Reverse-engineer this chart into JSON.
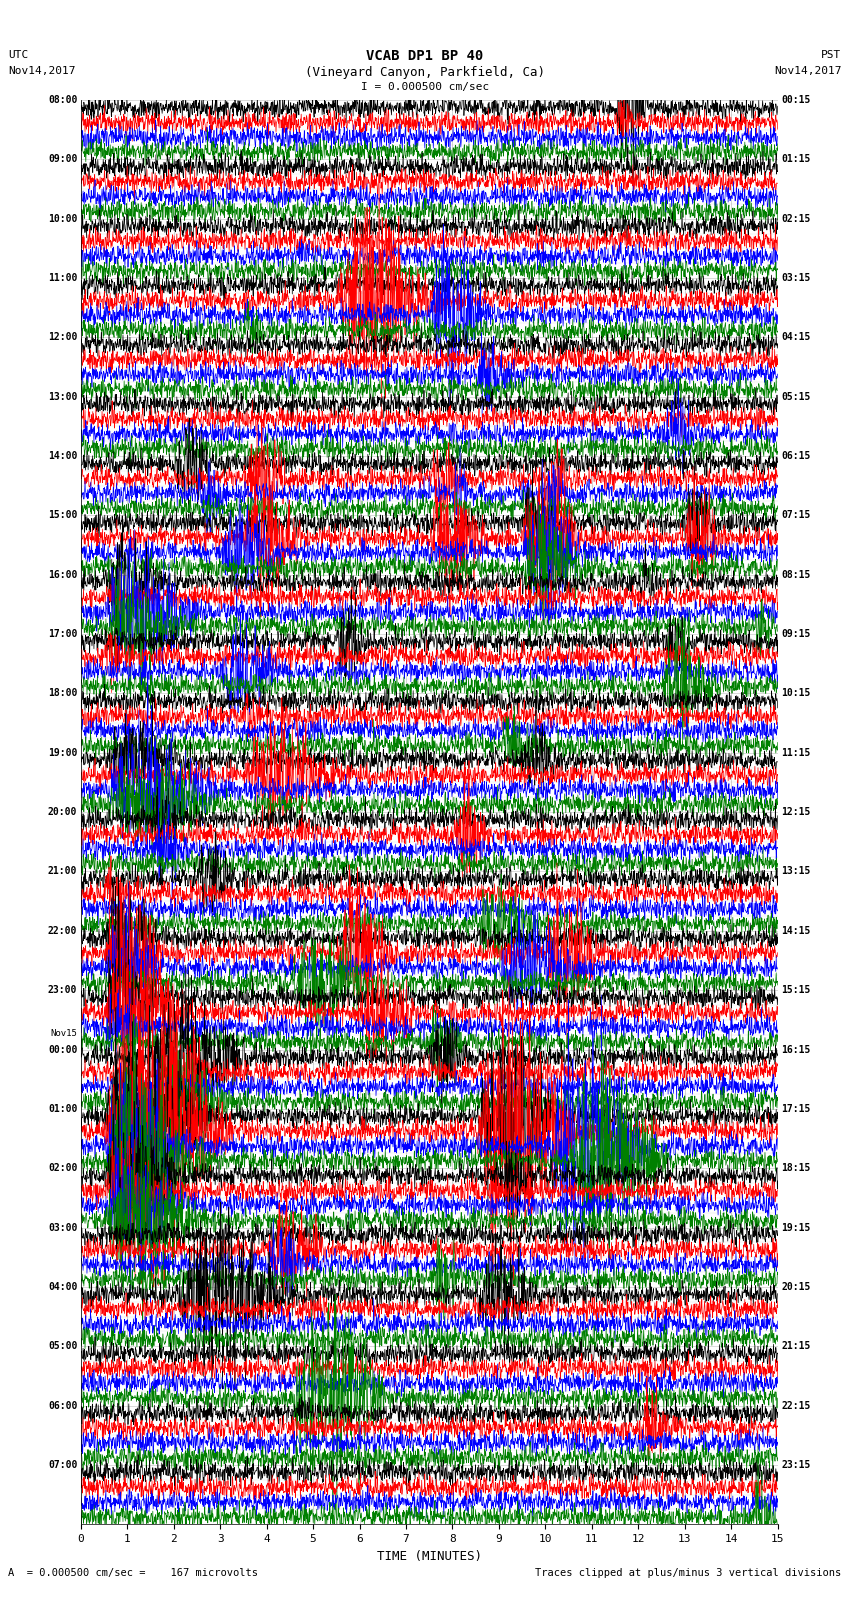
{
  "title_line1": "VCAB DP1 BP 40",
  "title_line2": "(Vineyard Canyon, Parkfield, Ca)",
  "scale_label": "I = 0.000500 cm/sec",
  "left_label_top": "UTC",
  "left_label_date": "Nov14,2017",
  "right_label_top": "PST",
  "right_label_date": "Nov14,2017",
  "xlabel": "TIME (MINUTES)",
  "bottom_left_note": "A  = 0.000500 cm/sec =    167 microvolts",
  "bottom_right_note": "Traces clipped at plus/minus 3 vertical divisions",
  "xlim": [
    0,
    15
  ],
  "xticks": [
    0,
    1,
    2,
    3,
    4,
    5,
    6,
    7,
    8,
    9,
    10,
    11,
    12,
    13,
    14,
    15
  ],
  "colors": [
    "black",
    "red",
    "blue",
    "green"
  ],
  "utc_times": [
    "08:00",
    "09:00",
    "10:00",
    "11:00",
    "12:00",
    "13:00",
    "14:00",
    "15:00",
    "16:00",
    "17:00",
    "18:00",
    "19:00",
    "20:00",
    "21:00",
    "22:00",
    "23:00",
    "Nov15",
    "00:00",
    "01:00",
    "02:00",
    "03:00",
    "04:00",
    "05:00",
    "06:00",
    "07:00"
  ],
  "pst_times": [
    "00:15",
    "01:15",
    "02:15",
    "03:15",
    "04:15",
    "05:15",
    "06:15",
    "07:15",
    "08:15",
    "09:15",
    "10:15",
    "11:15",
    "12:15",
    "13:15",
    "14:15",
    "15:15",
    "16:15",
    "17:15",
    "18:15",
    "19:15",
    "20:15",
    "21:15",
    "22:15",
    "23:15"
  ],
  "num_hours": 24,
  "traces_per_hour": 4,
  "background_color": "white",
  "fig_width": 8.5,
  "fig_height": 16.13,
  "dpi": 100
}
